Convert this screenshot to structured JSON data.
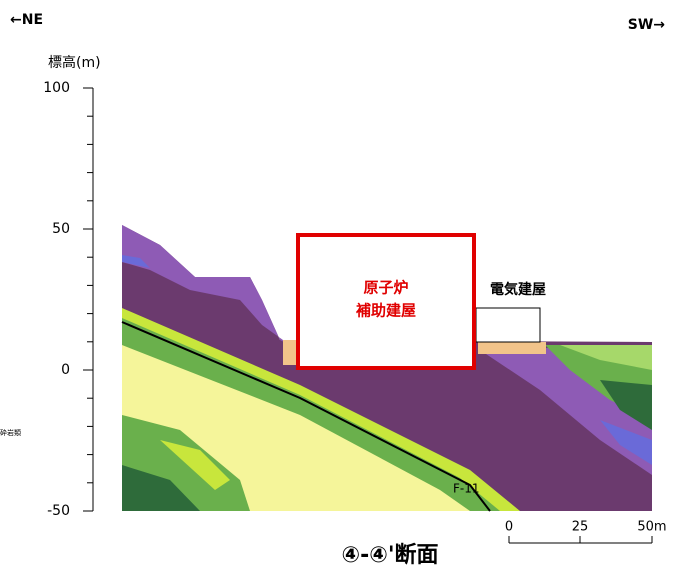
{
  "direction_left": "←NE",
  "direction_right": "SW→",
  "axis": {
    "label": "標高(m)",
    "ylim": [
      -50,
      100
    ],
    "ticks": [
      100,
      50,
      0,
      -50
    ],
    "minor_step": 10
  },
  "buildings": {
    "reactor_line1": "原子炉",
    "reactor_line2": "補助建屋",
    "electric": "電気建屋"
  },
  "fault": "F-11",
  "legend_fragment": "砕岩類",
  "scale": {
    "labels": [
      "0",
      "25",
      "50m"
    ]
  },
  "title": "④-④'断面"
}
